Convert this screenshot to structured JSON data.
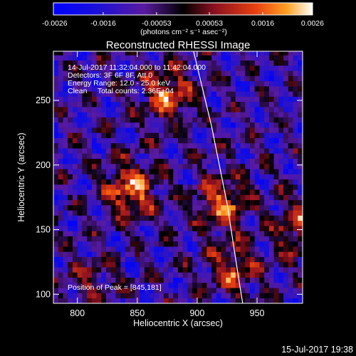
{
  "chart_data": {
    "type": "heatmap",
    "title": "Reconstructed RHESSI Image",
    "xlabel": "Heliocentric X (arcsec)",
    "ylabel": "Heliocentric Y (arcsec)",
    "xlim": [
      780,
      988
    ],
    "ylim": [
      93,
      288
    ],
    "x_ticks": [
      800,
      850,
      900,
      950
    ],
    "y_ticks": [
      100,
      150,
      200,
      250
    ],
    "colorbar": {
      "range": [
        -0.0026,
        0.0026
      ],
      "ticks": [
        "-0.0026",
        "-0.0016",
        "-0.00053",
        "0.00053",
        "0.0016",
        "0.0026"
      ],
      "unit_label": "(photons cm⁻² s⁻¹ asec⁻²)"
    },
    "annotations": [
      "14-Jul-2017 11:32:04.000 to 11:42:04.000",
      "Detectors: 3F 6F 8F, Att 0",
      "Energy Range: 12.0 - 25.0 keV",
      "Clean     Total counts: 2.36E+04"
    ],
    "peak_label": "Position of Peak = [845,181]",
    "limb_curve": [
      [
        897,
        288
      ],
      [
        912,
        230
      ],
      [
        925,
        170
      ],
      [
        935,
        110
      ],
      [
        938,
        93
      ]
    ],
    "bright_sources": [
      {
        "x": 875,
        "y": 255,
        "intensity": 0.0024
      },
      {
        "x": 845,
        "y": 181,
        "intensity": 0.0026
      },
      {
        "x": 920,
        "y": 170,
        "intensity": 0.0023
      },
      {
        "x": 930,
        "y": 120,
        "intensity": 0.0018
      },
      {
        "x": 985,
        "y": 150,
        "intensity": 0.002
      },
      {
        "x": 810,
        "y": 110,
        "intensity": 0.0012
      }
    ]
  },
  "footer_timestamp": "15-Jul-2017 19:38"
}
